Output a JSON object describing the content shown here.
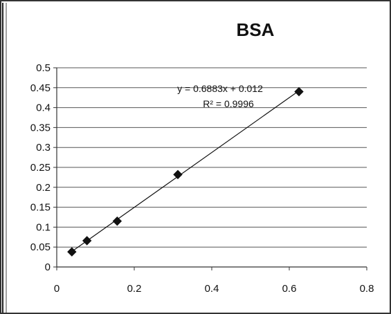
{
  "chart_data": {
    "type": "scatter",
    "title": "BSA",
    "xlabel": "",
    "ylabel": "",
    "xlim": [
      0,
      0.8
    ],
    "ylim": [
      0,
      0.5
    ],
    "x_ticks": [
      "0",
      "0.2",
      "0.4",
      "0.6",
      "0.8"
    ],
    "y_ticks": [
      "0",
      "0.05",
      "0.1",
      "0.15",
      "0.2",
      "0.25",
      "0.3",
      "0.35",
      "0.4",
      "0.45",
      "0.5"
    ],
    "grid": "horizontal",
    "legend": "none",
    "series": [
      {
        "points": [
          {
            "x": 0.039,
            "y": 0.038
          },
          {
            "x": 0.078,
            "y": 0.066
          },
          {
            "x": 0.156,
            "y": 0.115
          },
          {
            "x": 0.3125,
            "y": 0.232
          },
          {
            "x": 0.625,
            "y": 0.44
          }
        ],
        "marker": "diamond",
        "color": "#111111"
      }
    ],
    "trendline": {
      "slope": 0.6883,
      "intercept": 0.012,
      "x_range": [
        0.039,
        0.625
      ],
      "equation": "y = 0.6883x + 0.012",
      "r_squared": "R² = 0.9996"
    }
  }
}
